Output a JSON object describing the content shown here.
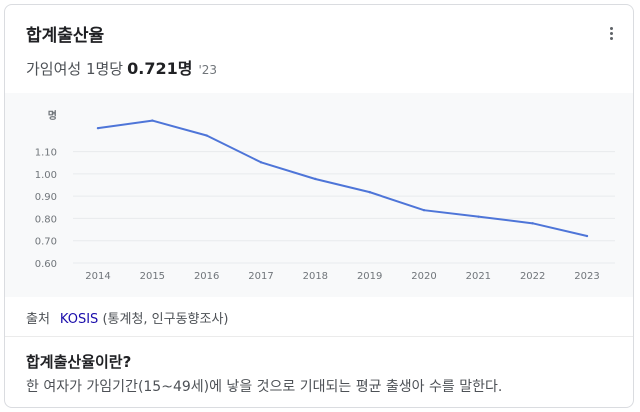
{
  "card": {
    "title": "합계출산율",
    "sub_label": "가임여성 1명당",
    "value": "0.721명",
    "year": "'23",
    "menu_icon": "more-vert-icon"
  },
  "source": {
    "label": "출처",
    "link": "KOSIS",
    "detail": "(통계청, 인구동향조사)"
  },
  "definition": {
    "question": "합계출산율이란?",
    "text": "한 여자가 가임기간(15~49세)에 낳을 것으로 기대되는 평균 출생아 수를 말한다."
  },
  "chart_data": {
    "type": "line",
    "unit_label": "명",
    "x": [
      "2014",
      "2015",
      "2016",
      "2017",
      "2018",
      "2019",
      "2020",
      "2021",
      "2022",
      "2023"
    ],
    "series": [
      {
        "values": [
          1.205,
          1.239,
          1.172,
          1.052,
          0.977,
          0.918,
          0.837,
          0.808,
          0.778,
          0.721
        ],
        "color": "#4e75d8"
      }
    ],
    "y_ticks": [
      "1.10",
      "1.00",
      "0.90",
      "0.80",
      "0.70",
      "0.60"
    ],
    "ylim": [
      0.6,
      1.3
    ],
    "grid": true
  }
}
